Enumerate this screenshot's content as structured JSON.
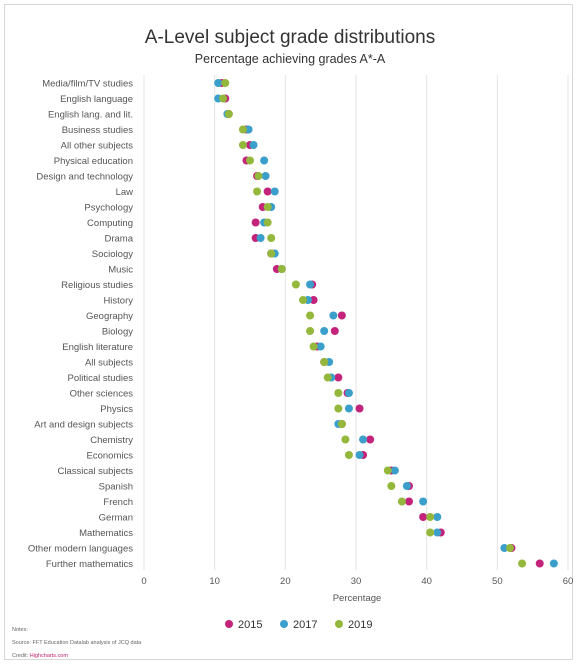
{
  "colors": {
    "2015": "#c3237a",
    "2017": "#3b9fcb",
    "2019": "#93b83b"
  },
  "notes": {
    "heading": "Notes:",
    "source": "Source: FFT Education Datalab analysis of JCQ data",
    "credit_label": "Credit:",
    "credit_link": "Highcharts.com"
  },
  "chart_data": {
    "type": "scatter",
    "title": "A-Level subject grade distributions",
    "subtitle": "Percentage achieving grades A*-A",
    "xlabel": "Percentage",
    "ylabel": "",
    "xlim": [
      0,
      60
    ],
    "xticks": [
      0,
      10,
      20,
      30,
      40,
      50,
      60
    ],
    "grid": true,
    "legend_placement": "bottom",
    "categories": [
      "Media/film/TV studies",
      "English language",
      "English lang. and lit.",
      "Business studies",
      "All other subjects",
      "Physical education",
      "Design and technology",
      "Law",
      "Psychology",
      "Computing",
      "Drama",
      "Sociology",
      "Music",
      "Religious studies",
      "History",
      "Geography",
      "Biology",
      "English literature",
      "All subjects",
      "Political studies",
      "Other sciences",
      "Physics",
      "Art and design subjects",
      "Chemistry",
      "Economics",
      "Classical subjects",
      "Spanish",
      "French",
      "German",
      "Mathematics",
      "Other modern languages",
      "Further mathematics"
    ],
    "series": [
      {
        "name": "2015",
        "values": [
          11,
          11.5,
          12,
          14.5,
          15,
          14.5,
          16,
          17.5,
          16.8,
          15.8,
          15.8,
          18,
          18.8,
          23.8,
          24,
          28,
          27,
          24.5,
          25.5,
          27.5,
          28.8,
          30.5,
          28,
          32,
          31,
          35,
          37.5,
          37.5,
          39.5,
          42,
          52,
          56
        ]
      },
      {
        "name": "2017",
        "values": [
          10.5,
          10.5,
          11.8,
          14.8,
          15.5,
          17,
          17.2,
          18.5,
          18,
          17,
          16.5,
          18.5,
          19.5,
          23.5,
          23.2,
          26.8,
          25.5,
          25,
          26.2,
          26.5,
          29,
          29,
          27.5,
          31,
          30.5,
          35.5,
          37.2,
          39.5,
          41.5,
          41.5,
          51,
          58
        ]
      },
      {
        "name": "2019",
        "values": [
          11.5,
          11.2,
          12,
          14,
          14,
          15,
          16.2,
          16,
          17.5,
          17.5,
          18,
          18,
          19.5,
          21.5,
          22.5,
          23.5,
          23.5,
          24,
          25.5,
          26,
          27.5,
          27.5,
          28,
          28.5,
          29,
          34.5,
          35,
          36.5,
          40.5,
          40.5,
          51.8,
          53.5
        ]
      }
    ]
  }
}
